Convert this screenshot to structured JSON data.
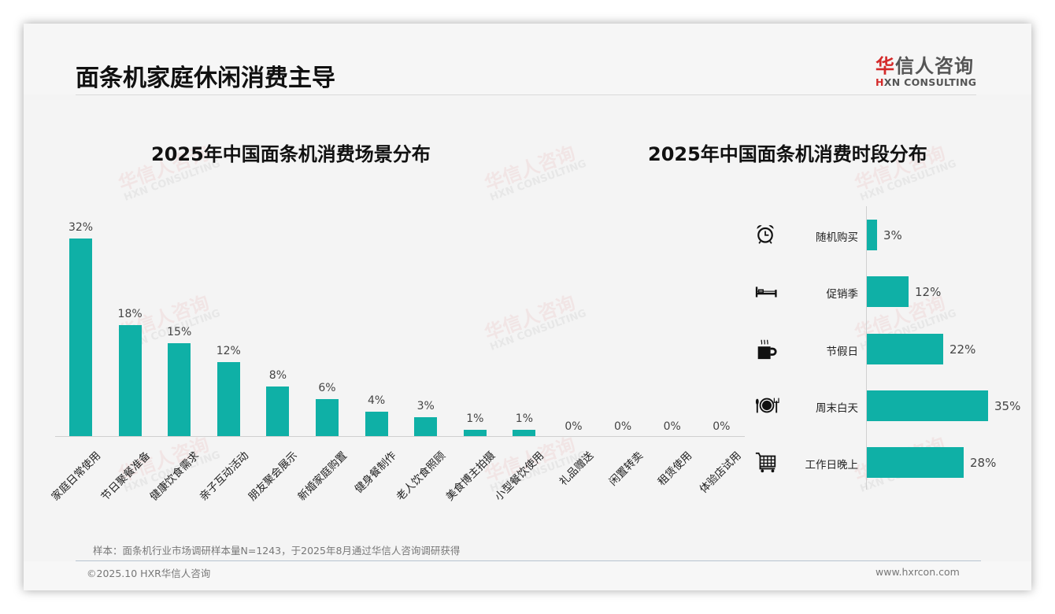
{
  "header": {
    "title": "面条机家庭休闲消费主导",
    "logo_cn_first": "华",
    "logo_cn_rest": "信人咨询",
    "logo_en_first": "H",
    "logo_en_rest": "XN CONSULTING"
  },
  "watermark": {
    "cn": "华信人咨询",
    "en": "HXN CONSULTING"
  },
  "brand_colors": {
    "bar": "#0fb0a6",
    "logo_red": "#d42a2a"
  },
  "footer": {
    "note": "样本：面条机行业市场调研样本量N=1243，于2025年8月通过华信人咨询调研获得",
    "copyright": "©2025.10 HXR华信人咨询",
    "website": "www.hxrcon.com"
  },
  "chart_data": [
    {
      "type": "bar",
      "title": "2025年中国面条机消费场景分布",
      "xlabel": "",
      "ylabel": "",
      "categories": [
        "家庭日常使用",
        "节日聚餐准备",
        "健康饮食需求",
        "亲子互动活动",
        "朋友聚会展示",
        "新婚家庭购置",
        "健身餐制作",
        "老人饮食照顾",
        "美食博主拍摄",
        "小型餐饮使用",
        "礼品赠送",
        "闲置转卖",
        "租赁使用",
        "体验店试用"
      ],
      "values": [
        32,
        18,
        15,
        12,
        8,
        6,
        4,
        3,
        1,
        1,
        0,
        0,
        0,
        0
      ],
      "value_labels": [
        "32%",
        "18%",
        "15%",
        "12%",
        "8%",
        "6%",
        "4%",
        "3%",
        "1%",
        "1%",
        "0%",
        "0%",
        "0%",
        "0%"
      ],
      "unit": "%",
      "grid": false,
      "legend": "none"
    },
    {
      "type": "bar",
      "orientation": "horizontal",
      "title": "2025年中国面条机消费时段分布",
      "xlabel": "",
      "ylabel": "",
      "categories": [
        "随机购买",
        "促销季",
        "节假日",
        "周末白天",
        "工作日晚上"
      ],
      "values": [
        3,
        12,
        22,
        35,
        28
      ],
      "value_labels": [
        "3%",
        "12%",
        "22%",
        "35%",
        "28%"
      ],
      "icons": [
        "alarm-clock-icon",
        "bed-icon",
        "coffee-mug-icon",
        "dining-plate-icon",
        "shopping-cart-icon"
      ],
      "unit": "%",
      "grid": false,
      "legend": "none"
    }
  ]
}
